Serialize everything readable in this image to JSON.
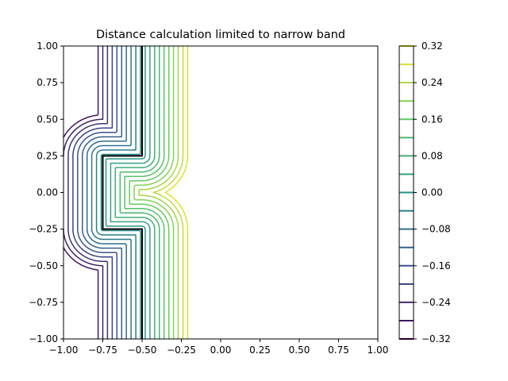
{
  "chart_data": {
    "type": "contour",
    "title": "Distance calculation limited to narrow band",
    "xlabel": "",
    "ylabel": "",
    "xlim": [
      -1.0,
      1.0
    ],
    "ylim": [
      -1.0,
      1.0
    ],
    "xticks": [
      "−1.00",
      "−0.75",
      "−0.50",
      "−0.25",
      "0.00",
      "0.25",
      "0.50",
      "0.75",
      "1.00"
    ],
    "yticks": [
      "−1.00",
      "−0.75",
      "−0.50",
      "−0.25",
      "0.00",
      "0.25",
      "0.50",
      "0.75",
      "1.00"
    ],
    "grid": false,
    "zero_contour": {
      "color": "#000000",
      "description_points": [
        [
          -0.5,
          1.0
        ],
        [
          -0.5,
          0.25
        ],
        [
          -0.75,
          0.25
        ],
        [
          -0.75,
          -0.25
        ],
        [
          -0.5,
          -0.25
        ],
        [
          -0.5,
          -1.0
        ]
      ]
    },
    "levels": [
      -0.28,
      -0.25,
      -0.22,
      -0.19,
      -0.16,
      -0.13,
      -0.1,
      -0.07,
      -0.04,
      -0.01,
      0.02,
      0.05,
      0.08,
      0.11,
      0.14,
      0.17,
      0.2,
      0.23,
      0.26,
      0.29
    ],
    "band_limit": 0.3,
    "colorbar": {
      "range": [
        -0.32,
        0.32
      ],
      "tick_values": [
        -0.32,
        -0.24,
        -0.16,
        -0.08,
        0.0,
        0.08,
        0.16,
        0.24,
        0.32
      ],
      "tick_labels": [
        "−0.32",
        "−0.24",
        "−0.16",
        "−0.08",
        "0.00",
        "0.08",
        "0.16",
        "0.24",
        "0.32"
      ],
      "line_levels": [
        -0.32,
        -0.28,
        -0.24,
        -0.2,
        -0.16,
        -0.12,
        -0.08,
        -0.04,
        0.0,
        0.04,
        0.08,
        0.12,
        0.16,
        0.2,
        0.24,
        0.28,
        0.32
      ],
      "colormap": "viridis"
    }
  }
}
